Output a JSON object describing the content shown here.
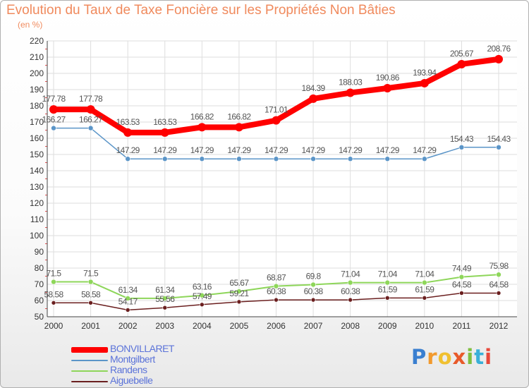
{
  "title": "Evolution du Taux de Taxe Foncière sur les Propriétés Non Bâties",
  "subtitle": "(en %)",
  "logo_text": "Proxiti",
  "chart_data": {
    "type": "line",
    "categories": [
      "2000",
      "2001",
      "2002",
      "2003",
      "2004",
      "2005",
      "2006",
      "2007",
      "2008",
      "2009",
      "2010",
      "2011",
      "2012"
    ],
    "ylim": [
      50,
      220
    ],
    "yticks": [
      50,
      60,
      70,
      80,
      90,
      100,
      110,
      120,
      130,
      140,
      150,
      160,
      170,
      180,
      190,
      200,
      210,
      220
    ],
    "grid": true,
    "legend_position": "bottom-left",
    "series": [
      {
        "name": "BONVILLARET",
        "color": "#ff0000",
        "values": [
          177.78,
          177.78,
          163.53,
          163.53,
          166.82,
          166.82,
          171.01,
          184.39,
          188.03,
          190.86,
          193.94,
          205.67,
          208.76
        ],
        "labels": [
          "177.78",
          "177.78",
          "163.53",
          "163.53",
          "166.82",
          "166.82",
          "171.01",
          "184.39",
          "188.03",
          "190.86",
          "193.94",
          "205.67",
          "208.76"
        ]
      },
      {
        "name": "Montgilbert",
        "color": "#5b95c8",
        "values": [
          166.27,
          166.27,
          147.29,
          147.29,
          147.29,
          147.29,
          147.29,
          147.29,
          147.29,
          147.29,
          147.29,
          154.43,
          154.43
        ],
        "labels": [
          "166.27",
          "166.27",
          "147.29",
          "147.29",
          "147.29",
          "147.29",
          "147.29",
          "147.29",
          "147.29",
          "147.29",
          "147.29",
          "154.43",
          "154.43"
        ]
      },
      {
        "name": "Randens",
        "color": "#8ed65a",
        "values": [
          71.5,
          71.5,
          61.34,
          61.34,
          63.16,
          65.67,
          68.87,
          69.8,
          71.04,
          71.04,
          71.04,
          74.49,
          75.98
        ],
        "labels": [
          "71.5",
          "71.5",
          "61.34",
          "61.34",
          "63.16",
          "65.67",
          "68.87",
          "69.8",
          "71.04",
          "71.04",
          "71.04",
          "74.49",
          "75.98"
        ]
      },
      {
        "name": "Aiguebelle",
        "color": "#6b1f1f",
        "values": [
          58.58,
          58.58,
          54.17,
          55.56,
          57.49,
          59.21,
          60.38,
          60.38,
          60.38,
          61.59,
          61.59,
          64.58,
          64.58
        ],
        "labels": [
          "58.58",
          "58.58",
          "54.17",
          "55.56",
          "57.49",
          "59.21",
          "60.38",
          "60.38",
          "60.38",
          "61.59",
          "61.59",
          "64.58",
          "64.58"
        ]
      }
    ]
  }
}
